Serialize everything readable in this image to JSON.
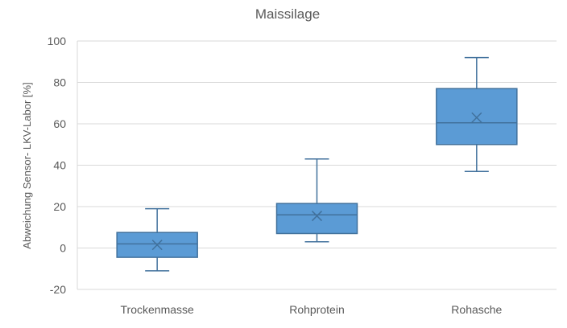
{
  "chart_data": {
    "type": "box",
    "title": "Maissilage",
    "xlabel": "",
    "ylabel": "Abweichung Sensor- LKV-Labor [%]",
    "ylim": [
      -20,
      100
    ],
    "yticks": [
      -20,
      0,
      20,
      40,
      60,
      80,
      100
    ],
    "grid": true,
    "categories": [
      "Trockenmasse",
      "Rohprotein",
      "Rohasche"
    ],
    "boxes": [
      {
        "category": "Trockenmasse",
        "min": -11,
        "q1": -4.5,
        "median": 2,
        "q3": 7.5,
        "max": 19,
        "mean": 1.5
      },
      {
        "category": "Rohprotein",
        "min": 3,
        "q1": 7,
        "median": 16,
        "q3": 21.5,
        "max": 43,
        "mean": 15.5
      },
      {
        "category": "Rohasche",
        "min": 37,
        "q1": 50,
        "median": 60.5,
        "q3": 77,
        "max": 92,
        "mean": 63
      }
    ],
    "colors": {
      "box_fill": "#5b9bd5",
      "box_stroke": "#41719c",
      "grid": "#d9d9d9",
      "axis": "#bfbfbf",
      "text": "#595959"
    }
  }
}
